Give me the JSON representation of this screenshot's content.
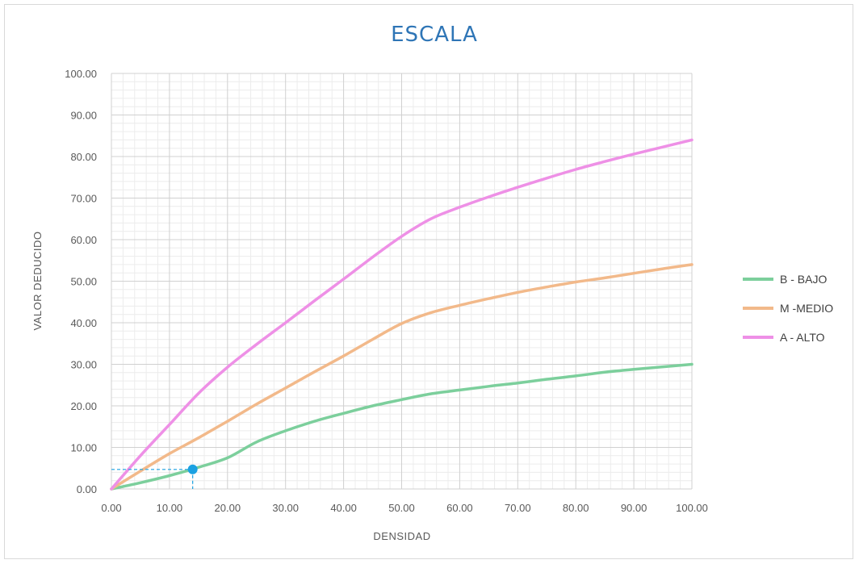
{
  "chart_data": {
    "type": "line",
    "title": "ESCALA",
    "xlabel": "DENSIDAD",
    "ylabel": "VALOR DEDUCIDO",
    "xlim": [
      0,
      100
    ],
    "ylim": [
      0,
      100
    ],
    "x_ticks": [
      "0.00",
      "10.00",
      "20.00",
      "30.00",
      "40.00",
      "50.00",
      "60.00",
      "70.00",
      "80.00",
      "90.00",
      "100.00"
    ],
    "y_ticks": [
      "0.00",
      "10.00",
      "20.00",
      "30.00",
      "40.00",
      "50.00",
      "60.00",
      "70.00",
      "80.00",
      "90.00",
      "100.00"
    ],
    "grid": true,
    "legend_position": "right",
    "series": [
      {
        "name": "B - BAJO",
        "color": "#7ccf9c",
        "x": [
          0,
          5,
          10,
          15,
          20,
          25,
          30,
          35,
          40,
          45,
          50,
          55,
          60,
          65,
          70,
          75,
          80,
          85,
          90,
          95,
          100
        ],
        "y": [
          0,
          1.5,
          3.2,
          5.2,
          7.5,
          11.3,
          14.0,
          16.3,
          18.2,
          20.0,
          21.5,
          22.9,
          23.8,
          24.7,
          25.5,
          26.4,
          27.2,
          28.1,
          28.8,
          29.4,
          30.0
        ]
      },
      {
        "name": "M -MEDIO",
        "color": "#f2b98a",
        "x": [
          0,
          5,
          10,
          15,
          20,
          25,
          30,
          35,
          40,
          45,
          50,
          55,
          60,
          65,
          70,
          75,
          80,
          85,
          90,
          95,
          100
        ],
        "y": [
          0,
          4.3,
          8.5,
          12.3,
          16.3,
          20.4,
          24.3,
          28.2,
          32.0,
          36.0,
          39.8,
          42.4,
          44.2,
          45.8,
          47.3,
          48.6,
          49.8,
          50.8,
          51.9,
          53.0,
          54.0
        ]
      },
      {
        "name": "A - ALTO",
        "color": "#ee90e6",
        "x": [
          0,
          5,
          10,
          15,
          20,
          25,
          30,
          35,
          40,
          45,
          50,
          55,
          60,
          65,
          70,
          75,
          80,
          85,
          90,
          95,
          100
        ],
        "y": [
          0,
          8.0,
          15.5,
          23.0,
          29.3,
          34.8,
          40.0,
          45.3,
          50.5,
          55.8,
          60.8,
          65.0,
          67.8,
          70.3,
          72.6,
          74.8,
          76.9,
          78.8,
          80.6,
          82.3,
          84.0
        ]
      }
    ],
    "marker": {
      "x": 14,
      "y": 4.7,
      "color": "#1ba1e2"
    }
  }
}
